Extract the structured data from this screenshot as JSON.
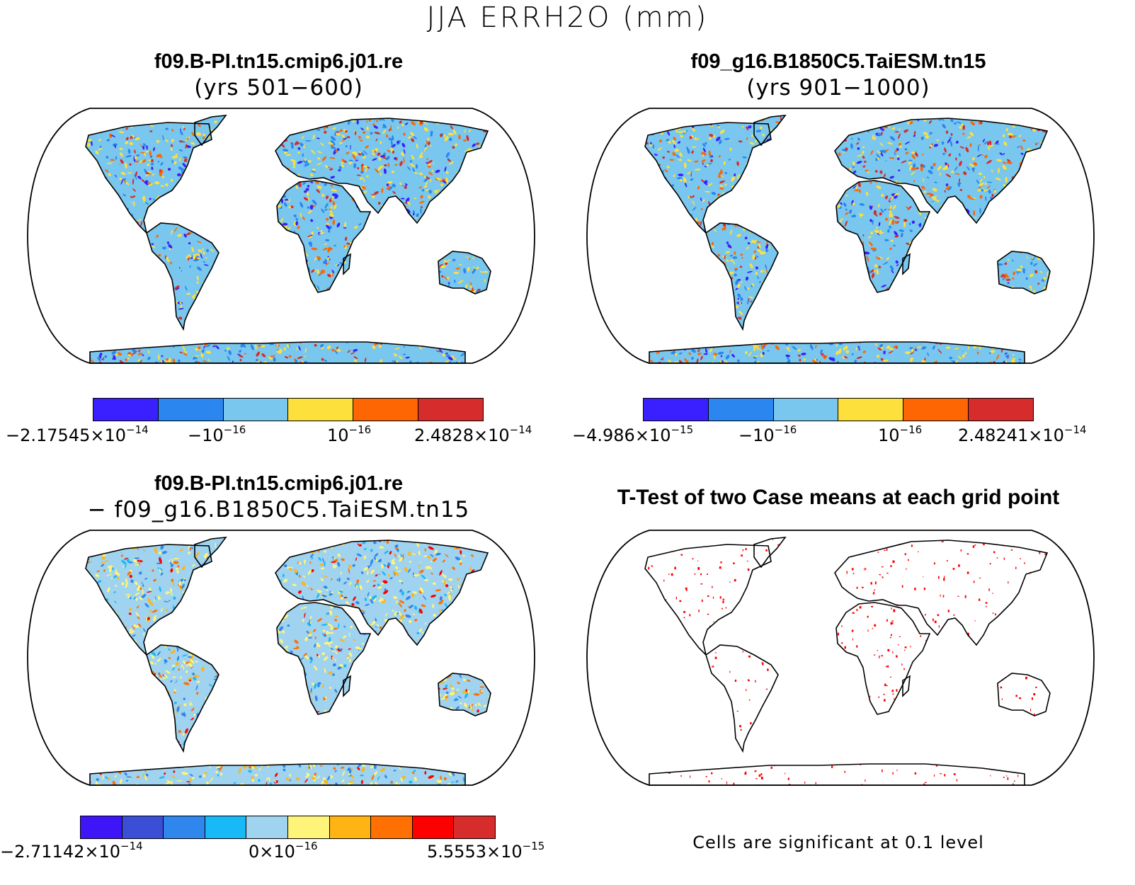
{
  "figure": {
    "title": "JJA ERRH2O (mm)"
  },
  "panels": [
    {
      "id": "case1",
      "title": "f09.B-PI.tn15.cmip6.j01.re",
      "subtitle": "(yrs 501−600)",
      "fill": "random-speckle",
      "colorbar": {
        "colors": [
          "#3a1fff",
          "#2b86ef",
          "#79c7ee",
          "#fde03b",
          "#fe6603",
          "#d62c2c"
        ],
        "labels": [
          {
            "base": "−2.17545×10",
            "exp": "−14"
          },
          {
            "base": "−10",
            "exp": "−16"
          },
          {
            "base": "10",
            "exp": "−16"
          },
          {
            "base": "2.4828×10",
            "exp": "−14"
          }
        ]
      }
    },
    {
      "id": "case2",
      "title": "f09_g16.B1850C5.TaiESM.tn15",
      "subtitle": "(yrs 901−1000)",
      "fill": "random-speckle",
      "colorbar": {
        "colors": [
          "#3a1fff",
          "#2b86ef",
          "#79c7ee",
          "#fde03b",
          "#fe6603",
          "#d62c2c"
        ],
        "labels": [
          {
            "base": "−4.986×10",
            "exp": "−15"
          },
          {
            "base": "−10",
            "exp": "−16"
          },
          {
            "base": "10",
            "exp": "−16"
          },
          {
            "base": "2.48241×10",
            "exp": "−14"
          }
        ]
      }
    },
    {
      "id": "difference",
      "title": "f09.B-PI.tn15.cmip6.j01.re",
      "subtitle": "− f09_g16.B1850C5.TaiESM.tn15",
      "fill": "random-speckle",
      "colorbar": {
        "colors": [
          "#3d15f7",
          "#3a4fd6",
          "#2f87ee",
          "#18b9f7",
          "#9fd3ef",
          "#fff47a",
          "#ffb414",
          "#ff7003",
          "#fd0000",
          "#d62c2c"
        ],
        "labels": [
          {
            "base": "−2.71142×10",
            "exp": "−14"
          },
          {
            "base": "0×10",
            "exp": "−16"
          },
          {
            "base": "5.5553×10",
            "exp": "−15"
          }
        ]
      }
    },
    {
      "id": "ttest",
      "title": "T-Test of two Case means at each grid point",
      "fill": "significance-dots",
      "dot_color": "#ff0000",
      "footnote": "Cells are significant at 0.1 level"
    }
  ]
}
